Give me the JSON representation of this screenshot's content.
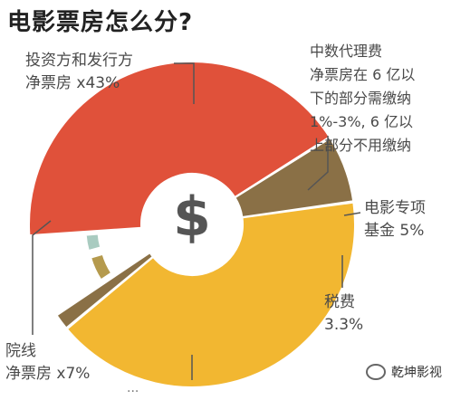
{
  "title": "电影票房怎么分?",
  "center_symbol": "$",
  "watermark": {
    "text": "乾坤影视",
    "icon": "wechat-icon"
  },
  "labels": {
    "investor_line1": "投资方和发行方",
    "investor_line2": "净票房 x43%",
    "agency_lines": [
      "中数代理费",
      "净票房在 6 亿以",
      "下的部分需缴纳",
      "1%-3%, 6 亿以",
      "上部分不用缴纳"
    ],
    "fund_line1": "电影专项",
    "fund_line2": "基金 5%",
    "tax_line1": "税费",
    "tax_line2": "3.3%",
    "cinema_line1": "院线",
    "cinema_line2": "净票房 x7%",
    "cutoff": "..."
  },
  "chart_data": {
    "type": "pie",
    "title": "电影票房怎么分?",
    "slices": [
      {
        "label": "投资方和发行方 净票房 x43%",
        "value": 41.6,
        "color": "#F2B731"
      },
      {
        "label": "中数代理费",
        "value": 1.7,
        "color": "#8A7046"
      },
      {
        "label": "电影专项基金 5%",
        "value": 5,
        "color": "#B59A4D",
        "exploded": true
      },
      {
        "label": "税费 3.3%",
        "value": 3.3,
        "color": "#A9CBC0",
        "exploded": true
      },
      {
        "label": "院线 净票房 x7%",
        "value": 42.6,
        "color": "#E0513A"
      },
      {
        "label": "院线 净票房 x7%",
        "value": 6.8,
        "color": "#8A7046"
      }
    ],
    "colors": {
      "gold": "#F2B731",
      "red": "#E0513A",
      "brown": "#8A7046",
      "tan": "#B59A4D",
      "teal": "#A9CBC0"
    }
  }
}
